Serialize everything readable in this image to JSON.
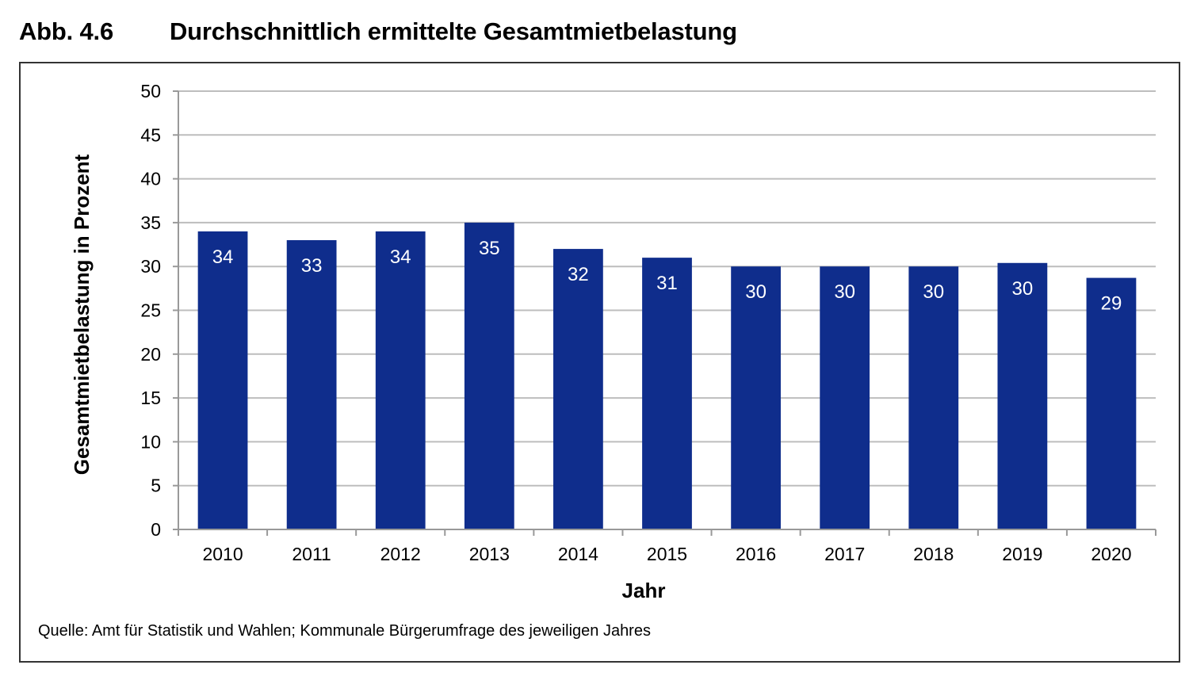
{
  "figure": {
    "number": "Abb. 4.6",
    "title": "Durchschnittlich ermittelte Gesamtmietbelastung",
    "source": "Quelle: Amt für Statistik und Wahlen; Kommunale Bürgerumfrage des jeweiligen Jahres"
  },
  "colors": {
    "bar": "#0F2D8C",
    "grid": "#BDBDBD",
    "axis": "#999999",
    "label_in_bar": "#FFFFFF"
  },
  "chart_data": {
    "type": "bar",
    "title": "Durchschnittlich ermittelte Gesamtmietbelastung",
    "xlabel": "Jahr",
    "ylabel": "Gesamtmietbelastung in Prozent",
    "categories": [
      "2010",
      "2011",
      "2012",
      "2013",
      "2014",
      "2015",
      "2016",
      "2017",
      "2018",
      "2019",
      "2020"
    ],
    "values": [
      34,
      33,
      34,
      35,
      32,
      31,
      30,
      30,
      30,
      30.4,
      28.7
    ],
    "data_labels": [
      "34",
      "33",
      "34",
      "35",
      "32",
      "31",
      "30",
      "30",
      "30",
      "30",
      "29"
    ],
    "ylim": [
      0,
      50
    ],
    "yticks": [
      0,
      5,
      10,
      15,
      20,
      25,
      30,
      35,
      40,
      45,
      50
    ],
    "grid": true,
    "legend": "none"
  }
}
